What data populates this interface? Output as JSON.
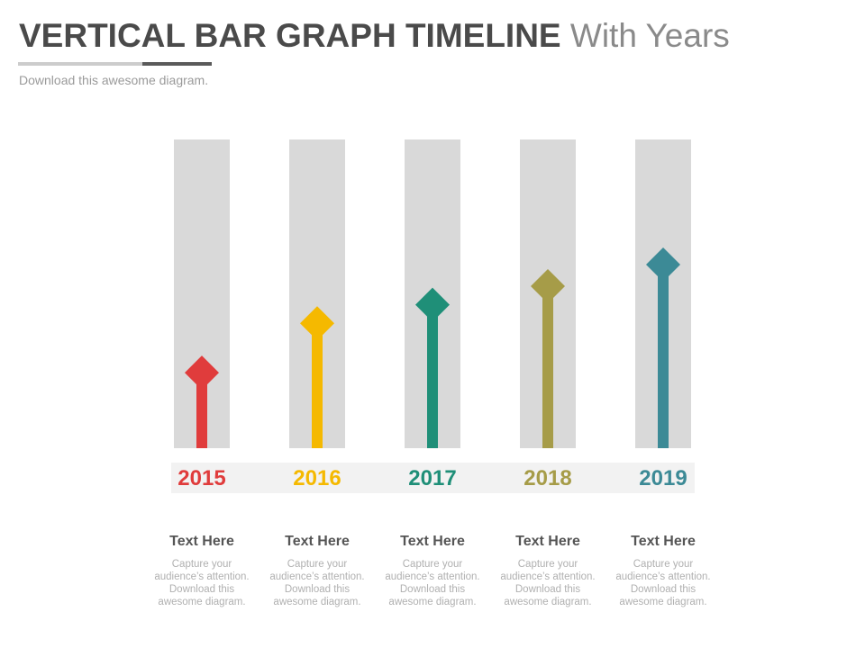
{
  "header": {
    "title_bold": "VERTICAL BAR GRAPH TIMELINE",
    "title_light": "With Years",
    "subtitle": "Download this awesome diagram."
  },
  "chart_data": {
    "type": "bar",
    "title": "VERTICAL BAR GRAPH TIMELINE With Years",
    "xlabel": "",
    "ylabel": "",
    "categories": [
      "2015",
      "2016",
      "2017",
      "2018",
      "2019"
    ],
    "values": [
      30,
      46,
      52,
      58,
      65
    ],
    "ylim": [
      0,
      100
    ],
    "grid": false,
    "colors": [
      "#e03c3c",
      "#f5b900",
      "#1f8f78",
      "#a69c48",
      "#3c8a96"
    ],
    "track_color": "#d9d9d9",
    "label_band_color": "#f2f2f2"
  },
  "descriptions": [
    {
      "title": "Text Here",
      "lines": [
        "Capture your",
        "audience’s attention.",
        "Download this",
        "awesome diagram."
      ]
    },
    {
      "title": "Text Here",
      "lines": [
        "Capture your",
        "audience’s attention.",
        "Download this",
        "awesome diagram."
      ]
    },
    {
      "title": "Text Here",
      "lines": [
        "Capture your",
        "audience’s attention.",
        "Download this",
        "awesome diagram."
      ]
    },
    {
      "title": "Text Here",
      "lines": [
        "Capture your",
        "audience’s attention.",
        "Download this",
        "awesome diagram."
      ]
    },
    {
      "title": "Text Here",
      "lines": [
        "Capture your",
        "audience’s attention.",
        "Download this",
        "awesome diagram."
      ]
    }
  ]
}
